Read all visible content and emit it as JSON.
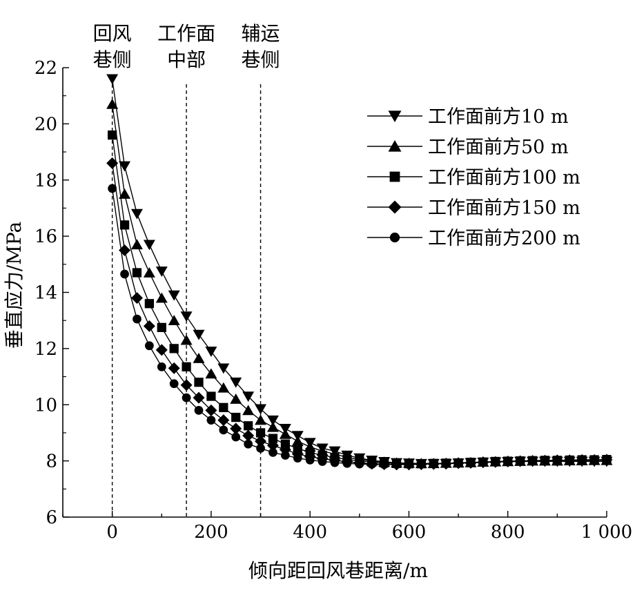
{
  "chart_data": {
    "type": "line",
    "xlabel": "倾向距回风巷距离/m",
    "ylabel": "垂直应力/MPa",
    "xlim": [
      -100,
      1000
    ],
    "ylim": [
      6,
      22
    ],
    "xticks": [
      0,
      200,
      400,
      600,
      800,
      1000
    ],
    "xtick_labels": [
      "0",
      "200",
      "400",
      "600",
      "800",
      "1 000"
    ],
    "yticks": [
      6,
      8,
      10,
      12,
      14,
      16,
      18,
      20,
      22
    ],
    "ytick_labels": [
      "6",
      "8",
      "10",
      "12",
      "14",
      "16",
      "18",
      "20",
      "22"
    ],
    "grid": false,
    "legend_position": "top-right",
    "vlines": [
      {
        "x": 0,
        "label_lines": [
          "回风",
          "巷侧"
        ]
      },
      {
        "x": 150,
        "label_lines": [
          "工作面",
          "中部"
        ]
      },
      {
        "x": 300,
        "label_lines": [
          "辅运",
          "巷侧"
        ]
      }
    ],
    "x": [
      0,
      25,
      50,
      75,
      100,
      125,
      150,
      175,
      200,
      225,
      250,
      275,
      300,
      325,
      350,
      375,
      400,
      425,
      450,
      475,
      500,
      525,
      550,
      575,
      600,
      625,
      650,
      675,
      700,
      725,
      750,
      775,
      800,
      825,
      850,
      875,
      900,
      925,
      950,
      975,
      1000
    ],
    "series": [
      {
        "name": "工作面前方10 m",
        "marker": "triangle-down",
        "values": [
          21.6,
          18.5,
          16.8,
          15.7,
          14.75,
          13.9,
          13.15,
          12.5,
          11.9,
          11.3,
          10.8,
          10.3,
          9.85,
          9.45,
          9.15,
          8.9,
          8.65,
          8.45,
          8.35,
          8.2,
          8.1,
          8.02,
          7.97,
          7.93,
          7.92,
          7.9,
          7.9,
          7.9,
          7.92,
          7.93,
          7.95,
          7.96,
          7.97,
          7.98,
          7.98,
          7.98,
          7.98,
          7.98,
          7.98,
          7.98,
          7.98
        ]
      },
      {
        "name": "工作面前方50 m",
        "marker": "triangle-up",
        "values": [
          20.7,
          17.5,
          15.7,
          14.7,
          13.8,
          13.0,
          12.3,
          11.65,
          11.1,
          10.6,
          10.2,
          9.8,
          9.45,
          9.2,
          8.95,
          8.7,
          8.5,
          8.35,
          8.25,
          8.12,
          8.05,
          8.0,
          7.96,
          7.93,
          7.92,
          7.91,
          7.91,
          7.92,
          7.93,
          7.94,
          7.96,
          7.97,
          7.98,
          7.99,
          8.0,
          8.0,
          8.0,
          8.01,
          8.01,
          8.02,
          8.02
        ]
      },
      {
        "name": "工作面前方100 m",
        "marker": "square",
        "values": [
          19.6,
          16.4,
          14.7,
          13.6,
          12.75,
          12.0,
          11.35,
          10.8,
          10.3,
          9.9,
          9.55,
          9.25,
          9.0,
          8.8,
          8.6,
          8.45,
          8.3,
          8.2,
          8.12,
          8.05,
          8.0,
          7.96,
          7.93,
          7.91,
          7.9,
          7.9,
          7.91,
          7.92,
          7.93,
          7.95,
          7.96,
          7.98,
          7.99,
          8.0,
          8.01,
          8.02,
          8.02,
          8.03,
          8.04,
          8.04,
          8.05
        ]
      },
      {
        "name": "工作面前方150 m",
        "marker": "diamond",
        "values": [
          18.6,
          15.5,
          13.8,
          12.8,
          11.95,
          11.3,
          10.7,
          10.25,
          9.8,
          9.45,
          9.15,
          8.9,
          8.7,
          8.55,
          8.4,
          8.25,
          8.15,
          8.08,
          8.02,
          7.97,
          7.93,
          7.9,
          7.88,
          7.87,
          7.87,
          7.88,
          7.89,
          7.9,
          7.92,
          7.93,
          7.95,
          7.96,
          7.98,
          7.99,
          8.0,
          8.01,
          8.02,
          8.02,
          8.03,
          8.03,
          8.04
        ]
      },
      {
        "name": "工作面前方200 m",
        "marker": "circle",
        "values": [
          17.7,
          14.65,
          13.05,
          12.1,
          11.35,
          10.75,
          10.25,
          9.8,
          9.45,
          9.1,
          8.85,
          8.6,
          8.45,
          8.3,
          8.2,
          8.1,
          8.03,
          7.98,
          7.94,
          7.91,
          7.89,
          7.88,
          7.87,
          7.87,
          7.88,
          7.89,
          7.9,
          7.91,
          7.93,
          7.94,
          7.95,
          7.97,
          7.98,
          7.99,
          8.0,
          8.01,
          8.01,
          8.02,
          8.02,
          8.03,
          8.03
        ]
      }
    ]
  }
}
